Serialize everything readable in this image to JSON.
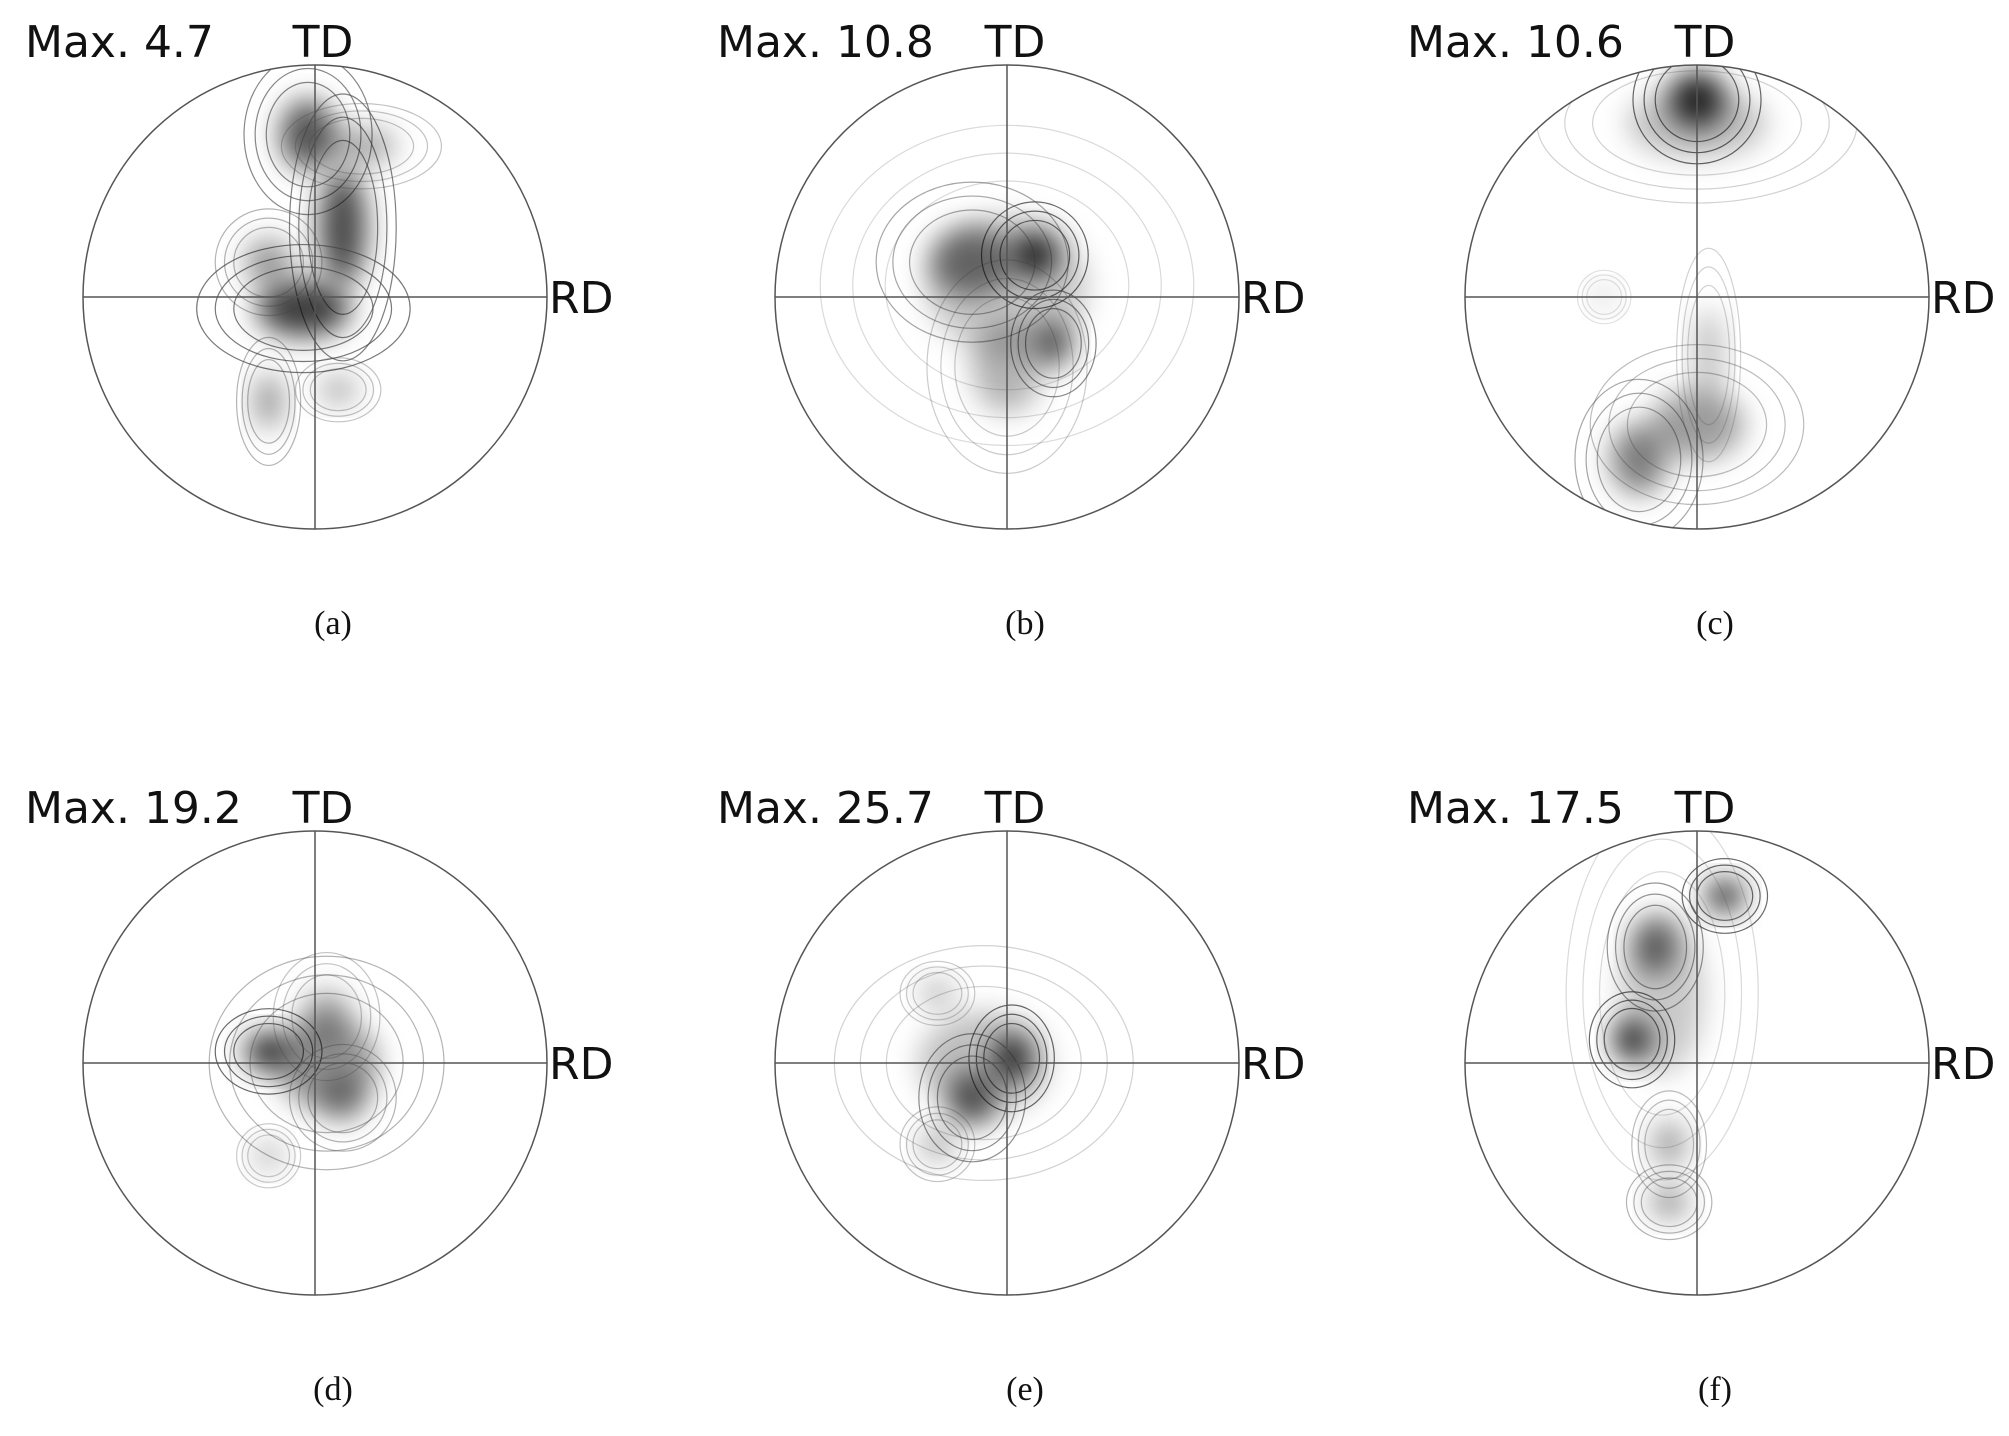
{
  "panels": [
    {
      "max": "Max. 4.7",
      "td": "TD",
      "rd": "RD",
      "caption": "(a)"
    },
    {
      "max": "Max. 10.8",
      "td": "TD",
      "rd": "RD",
      "caption": "(b)"
    },
    {
      "max": "Max. 10.6",
      "td": "TD",
      "rd": "RD",
      "caption": "(c)"
    },
    {
      "max": "Max. 19.2",
      "td": "TD",
      "rd": "RD",
      "caption": "(d)"
    },
    {
      "max": "Max. 25.7",
      "td": "TD",
      "rd": "RD",
      "caption": "(e)"
    },
    {
      "max": "Max. 17.5",
      "td": "TD",
      "rd": "RD",
      "caption": "(f)"
    }
  ]
}
